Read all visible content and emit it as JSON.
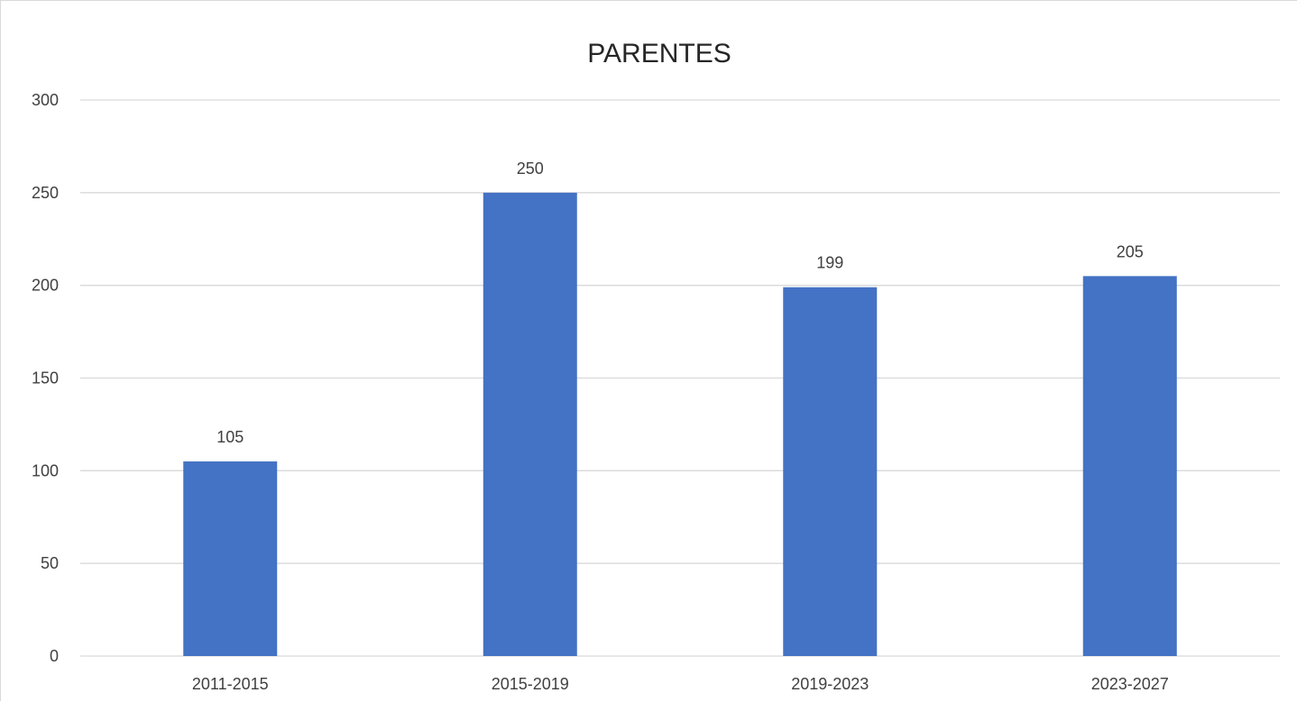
{
  "chart_data": {
    "type": "bar",
    "title": "PARENTES",
    "categories": [
      "2011-2015",
      "2015-2019",
      "2019-2023",
      "2023-2027"
    ],
    "values": [
      105,
      250,
      199,
      205
    ],
    "ylim": [
      0,
      300
    ],
    "yticks": [
      0,
      50,
      100,
      150,
      200,
      250,
      300
    ],
    "xlabel": "",
    "ylabel": "",
    "grid": true,
    "legend": "none",
    "bar_color": "#4472c4",
    "grid_color": "#d9d9d9",
    "data_labels": true
  }
}
